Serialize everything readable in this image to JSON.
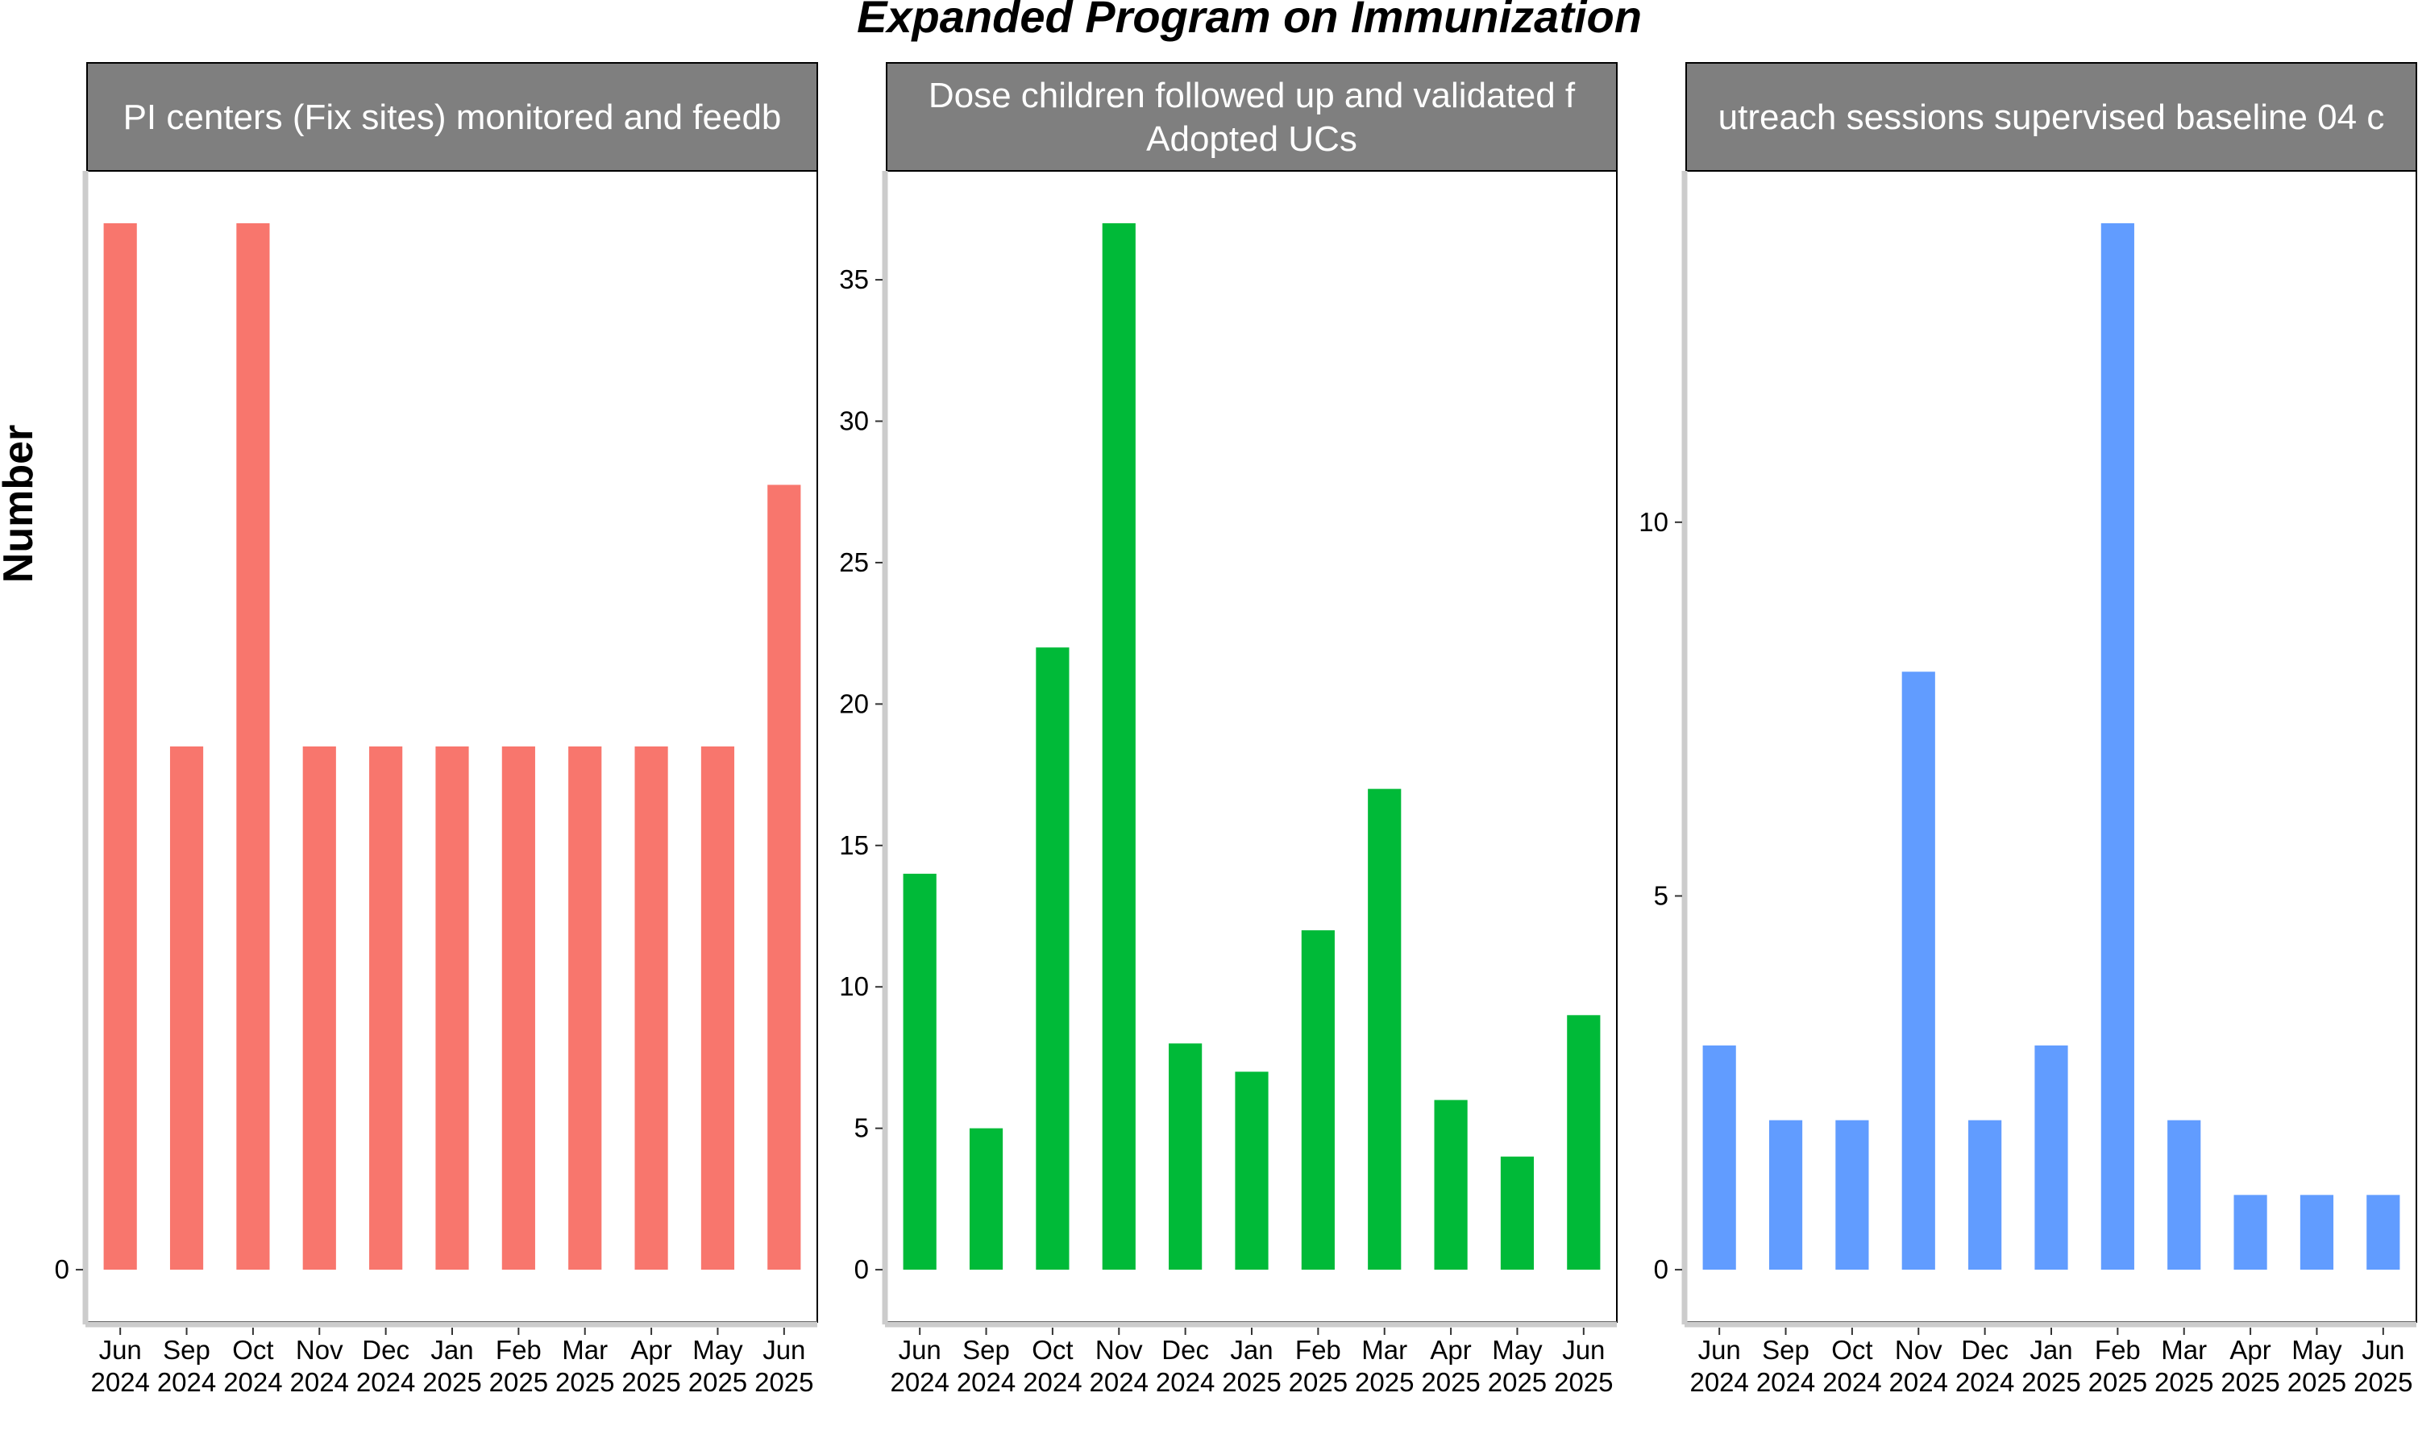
{
  "chart_data": {
    "type": "bar",
    "title": "Expanded Program on Immunization",
    "ylabel": "Number",
    "xlabel": "",
    "categories": [
      "Jun\n2024",
      "Sep\n2024",
      "Oct\n2024",
      "Nov\n2024",
      "Dec\n2024",
      "Jan\n2025",
      "Feb\n2025",
      "Mar\n2025",
      "Apr\n2025",
      "May\n2025",
      "Jun\n2025"
    ],
    "grid": false,
    "legend": "none",
    "panels": [
      {
        "title_lines": [
          "PI centers (Fix sites) monitored and feedb"
        ],
        "color": "#F8766D",
        "ylim": [
          -0.05,
          1.05
        ],
        "yticks": [
          0
        ],
        "values": [
          1,
          0.5,
          1,
          0.5,
          0.5,
          0.5,
          0.5,
          0.5,
          0.5,
          0.5,
          0.75
        ]
      },
      {
        "title_lines": [
          "Dose children followed up and validated f",
          "Adopted UCs"
        ],
        "color": "#00BA38",
        "ylim": [
          -1.85,
          38.85
        ],
        "yticks": [
          0,
          5,
          10,
          15,
          20,
          25,
          30,
          35
        ],
        "values": [
          14,
          5,
          22,
          37,
          8,
          7,
          12,
          17,
          6,
          4,
          9
        ]
      },
      {
        "title_lines": [
          "utreach sessions supervised baseline 04 c"
        ],
        "color": "#619CFF",
        "ylim": [
          -0.7,
          14.7
        ],
        "yticks": [
          0,
          5,
          10
        ],
        "values": [
          3,
          2,
          2,
          8,
          2,
          3,
          14,
          2,
          1,
          1,
          1
        ]
      }
    ]
  }
}
